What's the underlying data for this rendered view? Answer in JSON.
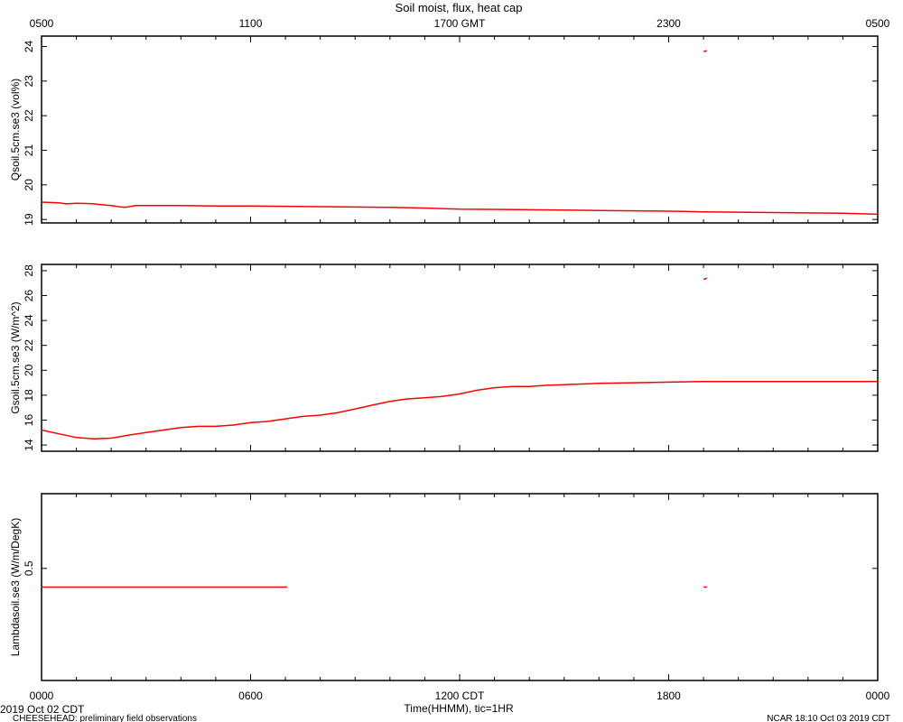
{
  "chart_data": {
    "type": "line",
    "title": "Soil moist, flux, heat cap",
    "top_axis": {
      "label": "GMT",
      "ticks": [
        "0500",
        "1100",
        "1700 GMT",
        "2300",
        "0500"
      ]
    },
    "bottom_axis": {
      "ticks": [
        "0000",
        "0600",
        "1200 CDT",
        "1800",
        "0000"
      ],
      "xlabel": "Time(HHMM), tic=1HR",
      "range_hours": [
        0,
        24
      ]
    },
    "panels": [
      {
        "ylabel": "Qsoil.5cm.se3 (vol%)",
        "ylim": [
          18.9,
          24.3
        ],
        "yticks": [
          19,
          20,
          21,
          22,
          23,
          24
        ],
        "series": [
          {
            "color": "#ff0000",
            "segments": [
              [
                [
                  0.0,
                  19.5
                ],
                [
                  0.5,
                  19.48
                ],
                [
                  0.7,
                  19.45
                ],
                [
                  1.0,
                  19.47
                ],
                [
                  1.3,
                  19.46
                ],
                [
                  1.5,
                  19.45
                ],
                [
                  1.8,
                  19.42
                ],
                [
                  2.0,
                  19.4
                ],
                [
                  2.2,
                  19.37
                ],
                [
                  2.4,
                  19.35
                ],
                [
                  2.7,
                  19.4
                ],
                [
                  3.0,
                  19.4
                ],
                [
                  4.0,
                  19.4
                ],
                [
                  5.0,
                  19.39
                ],
                [
                  6.0,
                  19.39
                ],
                [
                  7.0,
                  19.38
                ],
                [
                  8.0,
                  19.37
                ],
                [
                  9.0,
                  19.36
                ],
                [
                  10.0,
                  19.35
                ],
                [
                  10.5,
                  19.34
                ],
                [
                  11.0,
                  19.33
                ],
                [
                  12.0,
                  19.3
                ],
                [
                  13.0,
                  19.29
                ],
                [
                  14.0,
                  19.28
                ],
                [
                  15.0,
                  19.27
                ],
                [
                  16.0,
                  19.26
                ],
                [
                  17.0,
                  19.25
                ],
                [
                  18.0,
                  19.24
                ],
                [
                  19.0,
                  19.22
                ],
                [
                  20.0,
                  19.21
                ],
                [
                  21.0,
                  19.2
                ],
                [
                  22.0,
                  19.19
                ],
                [
                  23.0,
                  19.18
                ],
                [
                  24.0,
                  19.15
                ]
              ],
              [
                [
                  19.0,
                  23.85
                ],
                [
                  19.1,
                  23.88
                ]
              ]
            ]
          }
        ]
      },
      {
        "ylabel": "Gsoil.5cm.se3 (W/m^2)",
        "ylim": [
          13.5,
          28.5
        ],
        "yticks": [
          14,
          16,
          18,
          20,
          22,
          24,
          26,
          28
        ],
        "series": [
          {
            "color": "#ff0000",
            "segments": [
              [
                [
                  0.0,
                  15.2
                ],
                [
                  0.5,
                  14.9
                ],
                [
                  1.0,
                  14.6
                ],
                [
                  1.5,
                  14.5
                ],
                [
                  2.0,
                  14.55
                ],
                [
                  2.5,
                  14.8
                ],
                [
                  3.0,
                  15.0
                ],
                [
                  3.5,
                  15.2
                ],
                [
                  4.0,
                  15.4
                ],
                [
                  4.5,
                  15.5
                ],
                [
                  5.0,
                  15.5
                ],
                [
                  5.5,
                  15.6
                ],
                [
                  6.0,
                  15.8
                ],
                [
                  6.5,
                  15.9
                ],
                [
                  7.0,
                  16.1
                ],
                [
                  7.5,
                  16.3
                ],
                [
                  8.0,
                  16.4
                ],
                [
                  8.5,
                  16.6
                ],
                [
                  9.0,
                  16.9
                ],
                [
                  9.5,
                  17.2
                ],
                [
                  10.0,
                  17.5
                ],
                [
                  10.5,
                  17.7
                ],
                [
                  11.0,
                  17.8
                ],
                [
                  11.5,
                  17.9
                ],
                [
                  12.0,
                  18.1
                ],
                [
                  12.5,
                  18.4
                ],
                [
                  13.0,
                  18.6
                ],
                [
                  13.5,
                  18.7
                ],
                [
                  14.0,
                  18.7
                ],
                [
                  14.5,
                  18.8
                ],
                [
                  15.0,
                  18.85
                ],
                [
                  15.5,
                  18.9
                ],
                [
                  16.0,
                  18.95
                ],
                [
                  17.0,
                  19.0
                ],
                [
                  18.0,
                  19.05
                ],
                [
                  19.0,
                  19.1
                ],
                [
                  20.0,
                  19.1
                ],
                [
                  21.0,
                  19.1
                ],
                [
                  22.0,
                  19.1
                ],
                [
                  23.0,
                  19.1
                ],
                [
                  24.0,
                  19.1
                ]
              ],
              [
                [
                  19.0,
                  27.3
                ],
                [
                  19.1,
                  27.4
                ]
              ]
            ]
          }
        ]
      },
      {
        "ylabel": "Lambdasoil.se3 (W/m/DegK)",
        "ylim": [
          0.2,
          0.7
        ],
        "yticks": [
          0.5
        ],
        "series": [
          {
            "color": "#ff0000",
            "segments": [
              [
                [
                  0.0,
                  0.45
                ],
                [
                  7.05,
                  0.45
                ]
              ],
              [
                [
                  19.0,
                  0.45
                ],
                [
                  19.1,
                  0.45
                ]
              ]
            ]
          }
        ]
      }
    ]
  },
  "footer": {
    "left_date": "2019 Oct 02 CDT",
    "left_note": "CHEESEHEAD: preliminary field observations",
    "right_note": "NCAR 18:10 Oct 03 2019 CDT"
  }
}
